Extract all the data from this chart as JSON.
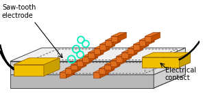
{
  "fig_width": 2.96,
  "fig_height": 1.42,
  "dpi": 100,
  "bg_color": "#ffffff",
  "orange": "#E07020",
  "yellow": "#F0C000",
  "cyan": "#00EEB8",
  "black": "#000000",
  "label_sawtooth": "Saw-tooth\nelectrode",
  "label_contact": "Electrical\ncontact",
  "font_size": 7.0,
  "box_top_color": "#e8e8e8",
  "box_front_color": "#c8c8c8",
  "box_right_color": "#d0d0d0",
  "box_edge_color": "#444444",
  "platform_top_color": "#f0f0f0",
  "platform_front_color": "#cccccc",
  "platform_right_color": "#d8d8d8",
  "channel_color": "#e4e4e4",
  "dashed_color": "#666666"
}
